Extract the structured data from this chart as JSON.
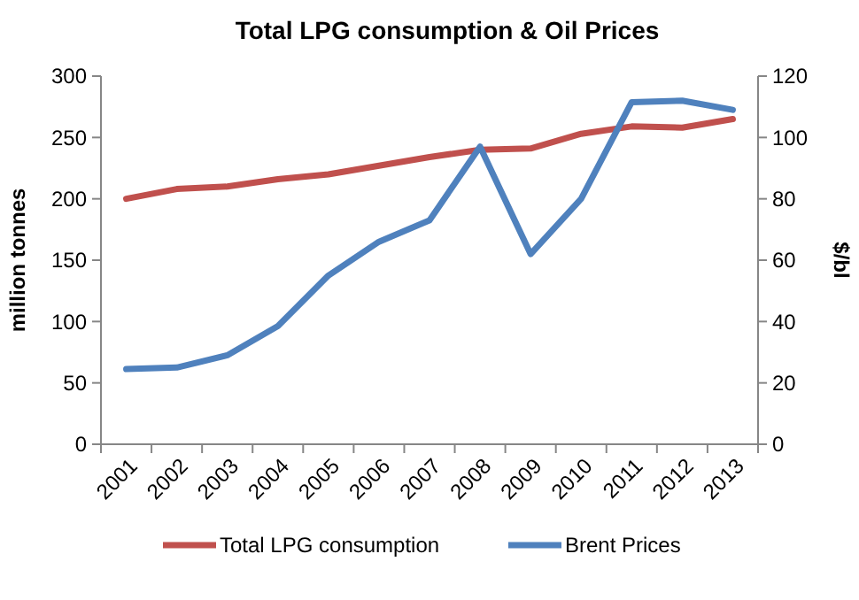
{
  "chart_data": {
    "type": "line",
    "title": "Total LPG consumption & Oil Prices",
    "ylabel": "million tonnes",
    "y2label": "$/bl",
    "categories": [
      "2001",
      "2002",
      "2003",
      "2004",
      "2005",
      "2006",
      "2007",
      "2008",
      "2009",
      "2010",
      "2011",
      "2012",
      "2013"
    ],
    "series": [
      {
        "name": "Total LPG consumption",
        "color": "#c0504d",
        "values": [
          200,
          208,
          210,
          216,
          220,
          227,
          234,
          240,
          241,
          253,
          259,
          258,
          265
        ]
      },
      {
        "name": "Brent Prices",
        "color": "#4f81bd",
        "axis": "y2",
        "values": [
          24.5,
          25,
          29,
          38.5,
          55,
          66,
          73,
          97,
          62,
          80,
          111.5,
          112,
          109
        ]
      }
    ],
    "ylim": [
      0,
      300
    ],
    "yticks": [
      0,
      50,
      100,
      150,
      200,
      250,
      300
    ],
    "y2lim": [
      0,
      120
    ],
    "y2ticks": [
      0,
      20,
      40,
      60,
      80,
      100,
      120
    ],
    "grid": false,
    "legend": "bottom",
    "marker": "none",
    "line_style": "solid"
  }
}
